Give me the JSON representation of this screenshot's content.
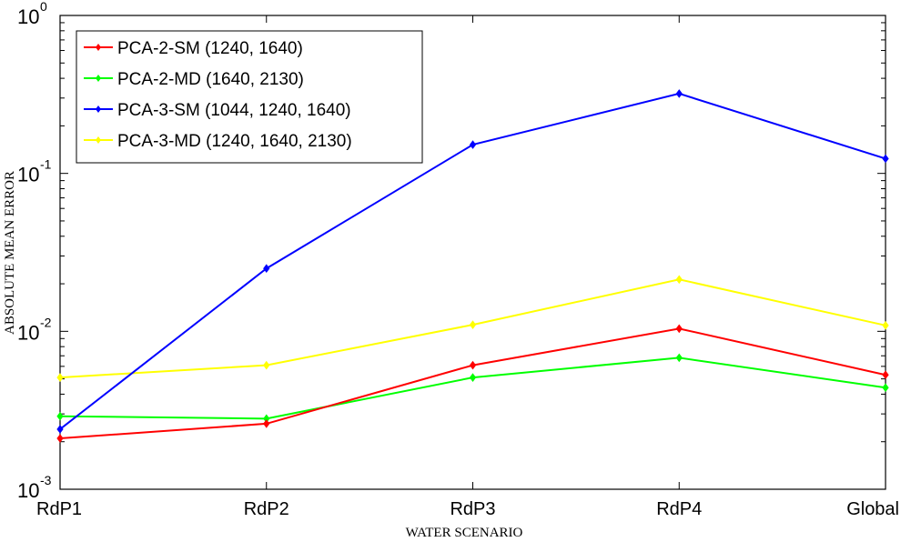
{
  "chart_data": {
    "type": "line",
    "xlabel": "WATER SCENARIO",
    "ylabel": "ABSOLUTE MEAN ERROR",
    "categories": [
      "RdP1",
      "RdP2",
      "RdP3",
      "RdP4",
      "Global"
    ],
    "y_scale": "log",
    "ylim": [
      0.001,
      1
    ],
    "y_ticks": [
      {
        "base": "10",
        "exp": "-3",
        "value": 0.001
      },
      {
        "base": "10",
        "exp": "-2",
        "value": 0.01
      },
      {
        "base": "10",
        "exp": "-1",
        "value": 0.1
      },
      {
        "base": "10",
        "exp": "0",
        "value": 1
      }
    ],
    "grid": false,
    "legend_position": "top-left",
    "series": [
      {
        "name": "PCA-2-SM (1240, 1640)",
        "color": "#ff0000",
        "values": [
          0.0021,
          0.0026,
          0.0061,
          0.0104,
          0.0053
        ]
      },
      {
        "name": "PCA-2-MD (1640, 2130)",
        "color": "#00ff00",
        "values": [
          0.0029,
          0.0028,
          0.0051,
          0.0068,
          0.0044
        ]
      },
      {
        "name": "PCA-3-SM (1044, 1240, 1640)",
        "color": "#0000ff",
        "values": [
          0.0024,
          0.025,
          0.152,
          0.32,
          0.124
        ]
      },
      {
        "name": "PCA-3-MD (1240, 1640, 2130)",
        "color": "#ffff00",
        "values": [
          0.0051,
          0.0061,
          0.011,
          0.0213,
          0.0109
        ]
      }
    ]
  }
}
